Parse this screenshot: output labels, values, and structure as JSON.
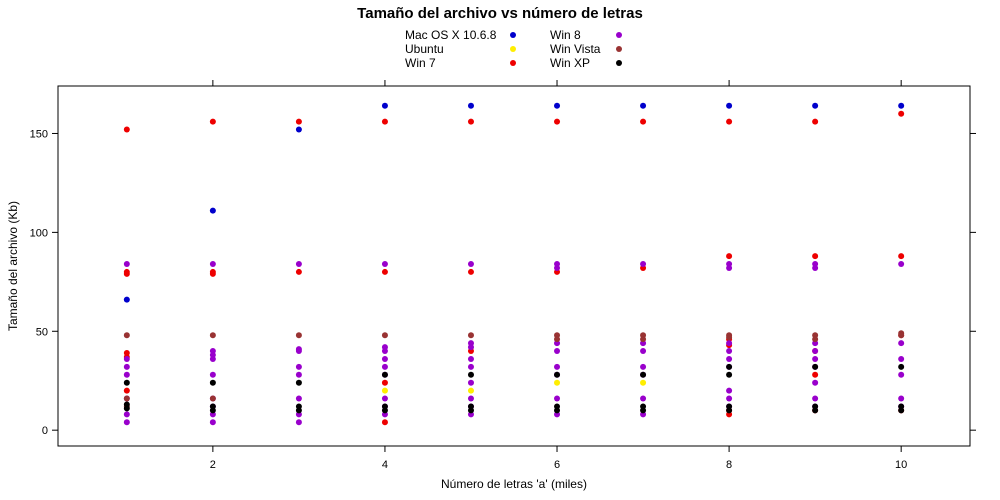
{
  "chart_data": {
    "type": "scatter",
    "title": "Tamaño del archivo vs número de letras",
    "xlabel": "Número de letras 'a' (miles)",
    "ylabel": "Tamaño del archivo (Kb)",
    "xlim": [
      0.2,
      10.8
    ],
    "ylim": [
      -8,
      174
    ],
    "xticks": [
      2,
      4,
      6,
      8,
      10
    ],
    "yticks": [
      0,
      50,
      100,
      150
    ],
    "legend_position": "top",
    "series": [
      {
        "name": "Mac OS X 10.6.8",
        "color": "#0000cc",
        "points": [
          [
            1,
            66
          ],
          [
            2,
            111
          ],
          [
            3,
            152
          ],
          [
            4,
            164
          ],
          [
            5,
            164
          ],
          [
            6,
            164
          ],
          [
            7,
            164
          ],
          [
            8,
            164
          ],
          [
            9,
            164
          ],
          [
            10,
            164
          ]
        ]
      },
      {
        "name": "Ubuntu",
        "color": "#ffee00",
        "points": [
          [
            4,
            20
          ],
          [
            5,
            20
          ],
          [
            6,
            24
          ],
          [
            7,
            24
          ]
        ]
      },
      {
        "name": "Win 7",
        "color": "#ee0000",
        "points": [
          [
            1,
            152
          ],
          [
            1,
            80
          ],
          [
            1,
            79
          ],
          [
            1,
            39
          ],
          [
            1,
            37
          ],
          [
            1,
            20
          ],
          [
            2,
            156
          ],
          [
            2,
            80
          ],
          [
            2,
            79
          ],
          [
            3,
            156
          ],
          [
            3,
            80
          ],
          [
            4,
            156
          ],
          [
            4,
            80
          ],
          [
            4,
            24
          ],
          [
            4,
            4
          ],
          [
            5,
            156
          ],
          [
            5,
            80
          ],
          [
            5,
            40
          ],
          [
            6,
            156
          ],
          [
            6,
            80
          ],
          [
            7,
            156
          ],
          [
            7,
            82
          ],
          [
            8,
            156
          ],
          [
            8,
            88
          ],
          [
            8,
            46
          ],
          [
            8,
            43
          ],
          [
            8,
            10
          ],
          [
            8,
            8
          ],
          [
            9,
            156
          ],
          [
            9,
            88
          ],
          [
            9,
            40
          ],
          [
            9,
            28
          ],
          [
            9,
            10
          ],
          [
            10,
            160
          ],
          [
            10,
            88
          ],
          [
            10,
            48
          ],
          [
            10,
            10
          ]
        ]
      },
      {
        "name": "Win 8",
        "color": "#9900cc",
        "points": [
          [
            1,
            84
          ],
          [
            1,
            36
          ],
          [
            1,
            32
          ],
          [
            1,
            28
          ],
          [
            1,
            16
          ],
          [
            1,
            8
          ],
          [
            1,
            4
          ],
          [
            2,
            84
          ],
          [
            2,
            40
          ],
          [
            2,
            38
          ],
          [
            2,
            36
          ],
          [
            2,
            28
          ],
          [
            2,
            16
          ],
          [
            2,
            12
          ],
          [
            2,
            8
          ],
          [
            2,
            4
          ],
          [
            3,
            84
          ],
          [
            3,
            41
          ],
          [
            3,
            40
          ],
          [
            3,
            32
          ],
          [
            3,
            28
          ],
          [
            3,
            16
          ],
          [
            3,
            8
          ],
          [
            3,
            4
          ],
          [
            4,
            84
          ],
          [
            4,
            42
          ],
          [
            4,
            40
          ],
          [
            4,
            36
          ],
          [
            4,
            32
          ],
          [
            4,
            28
          ],
          [
            4,
            16
          ],
          [
            4,
            12
          ],
          [
            4,
            8
          ],
          [
            5,
            84
          ],
          [
            5,
            44
          ],
          [
            5,
            42
          ],
          [
            5,
            36
          ],
          [
            5,
            32
          ],
          [
            5,
            24
          ],
          [
            5,
            16
          ],
          [
            5,
            12
          ],
          [
            5,
            8
          ],
          [
            6,
            84
          ],
          [
            6,
            82
          ],
          [
            6,
            44
          ],
          [
            6,
            40
          ],
          [
            6,
            32
          ],
          [
            6,
            28
          ],
          [
            6,
            16
          ],
          [
            6,
            8
          ],
          [
            7,
            84
          ],
          [
            7,
            44
          ],
          [
            7,
            40
          ],
          [
            7,
            32
          ],
          [
            7,
            28
          ],
          [
            7,
            16
          ],
          [
            7,
            8
          ],
          [
            8,
            84
          ],
          [
            8,
            82
          ],
          [
            8,
            44
          ],
          [
            8,
            40
          ],
          [
            8,
            36
          ],
          [
            8,
            32
          ],
          [
            8,
            20
          ],
          [
            8,
            16
          ],
          [
            8,
            12
          ],
          [
            9,
            84
          ],
          [
            9,
            82
          ],
          [
            9,
            44
          ],
          [
            9,
            40
          ],
          [
            9,
            36
          ],
          [
            9,
            32
          ],
          [
            9,
            24
          ],
          [
            9,
            16
          ],
          [
            9,
            12
          ],
          [
            10,
            84
          ],
          [
            10,
            44
          ],
          [
            10,
            36
          ],
          [
            10,
            28
          ],
          [
            10,
            16
          ],
          [
            10,
            12
          ]
        ]
      },
      {
        "name": "Win Vista",
        "color": "#993333",
        "points": [
          [
            1,
            48
          ],
          [
            1,
            16
          ],
          [
            1,
            12
          ],
          [
            2,
            48
          ],
          [
            2,
            16
          ],
          [
            3,
            48
          ],
          [
            4,
            48
          ],
          [
            5,
            48
          ],
          [
            6,
            48
          ],
          [
            6,
            46
          ],
          [
            7,
            48
          ],
          [
            7,
            46
          ],
          [
            8,
            48
          ],
          [
            8,
            47
          ],
          [
            9,
            48
          ],
          [
            9,
            46
          ],
          [
            10,
            49
          ],
          [
            10,
            48
          ]
        ]
      },
      {
        "name": "Win XP",
        "color": "#000000",
        "points": [
          [
            1,
            24
          ],
          [
            1,
            13
          ],
          [
            1,
            11
          ],
          [
            2,
            24
          ],
          [
            2,
            12
          ],
          [
            2,
            10
          ],
          [
            3,
            24
          ],
          [
            3,
            12
          ],
          [
            3,
            10
          ],
          [
            4,
            28
          ],
          [
            4,
            12
          ],
          [
            4,
            10
          ],
          [
            5,
            28
          ],
          [
            5,
            12
          ],
          [
            5,
            10
          ],
          [
            6,
            28
          ],
          [
            6,
            12
          ],
          [
            6,
            10
          ],
          [
            7,
            28
          ],
          [
            7,
            12
          ],
          [
            7,
            10
          ],
          [
            8,
            32
          ],
          [
            8,
            28
          ],
          [
            8,
            12
          ],
          [
            8,
            10
          ],
          [
            9,
            32
          ],
          [
            9,
            12
          ],
          [
            9,
            10
          ],
          [
            10,
            32
          ],
          [
            10,
            12
          ],
          [
            10,
            10
          ]
        ]
      }
    ]
  }
}
